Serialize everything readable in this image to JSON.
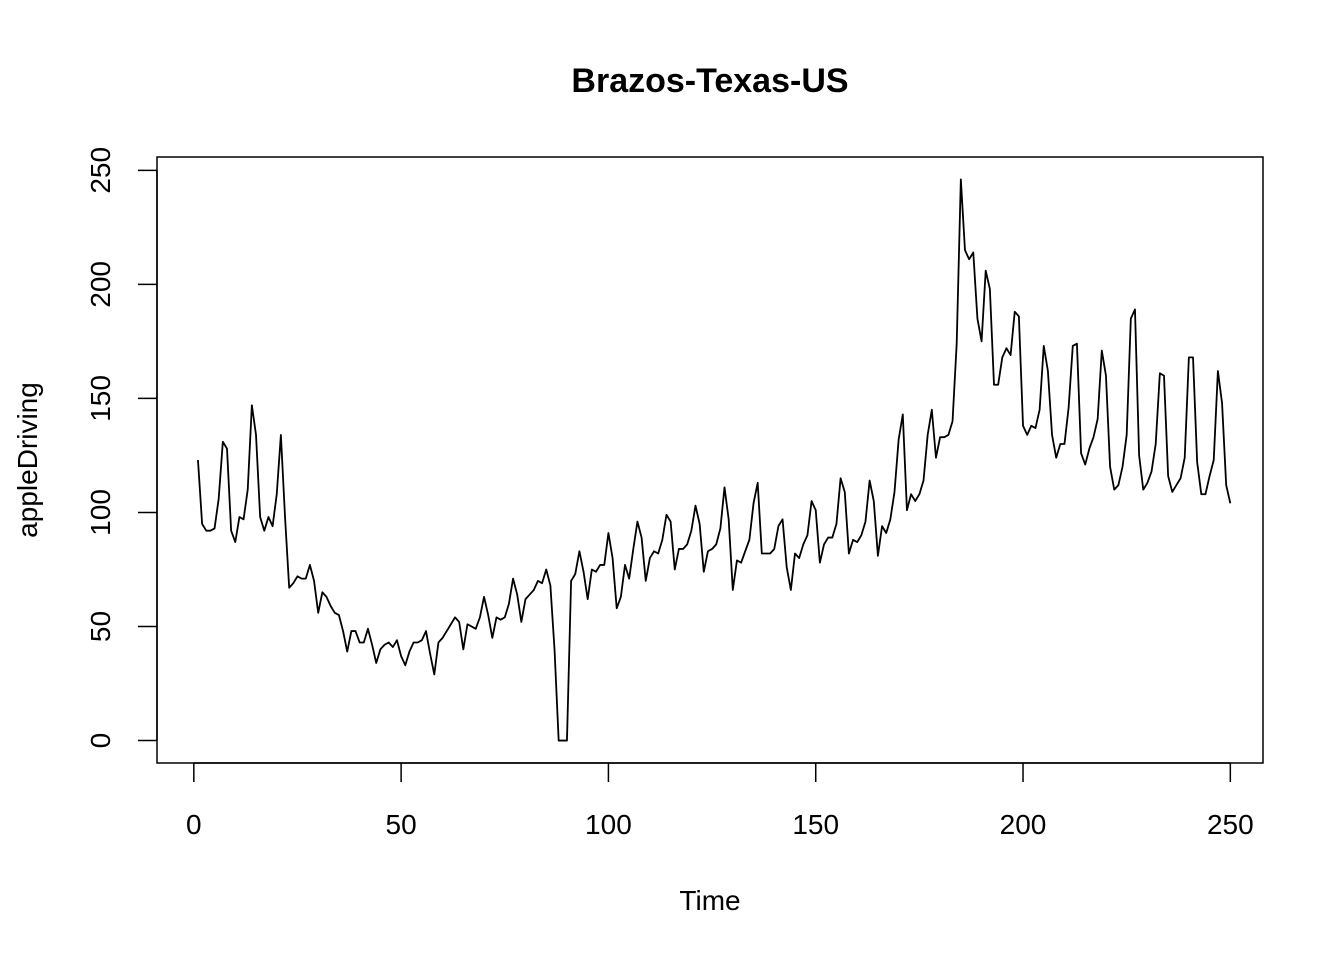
{
  "chart_data": {
    "type": "line",
    "title": "Brazos-Texas-US",
    "xlabel": "Time",
    "ylabel": "appleDriving",
    "xlim": [
      1,
      248
    ],
    "ylim": [
      0,
      246
    ],
    "xticks": [
      0,
      50,
      100,
      150,
      200,
      250
    ],
    "yticks": [
      0,
      50,
      100,
      150,
      200,
      250
    ],
    "grid": false,
    "legend": "none",
    "line_color": "#000000",
    "series": [
      {
        "values": [
          123,
          95,
          92,
          92,
          93,
          106,
          131,
          128,
          92,
          87,
          98,
          97,
          110,
          147,
          134,
          98,
          92,
          98,
          94,
          108,
          134,
          98,
          67,
          69,
          72,
          71,
          71,
          77,
          70,
          56,
          65,
          63,
          59,
          56,
          55,
          48,
          39,
          48,
          48,
          43,
          43,
          49,
          42,
          34,
          40,
          42,
          43,
          41,
          44,
          37,
          33,
          39,
          43,
          43,
          44,
          48,
          38,
          29,
          43,
          45,
          48,
          51,
          54,
          52,
          40,
          51,
          50,
          49,
          54,
          63,
          55,
          45,
          54,
          53,
          54,
          60,
          71,
          64,
          52,
          62,
          64,
          66,
          70,
          69,
          75,
          68,
          40,
          0,
          0,
          0,
          70,
          73,
          83,
          74,
          62,
          75,
          74,
          77,
          77,
          91,
          80,
          58,
          63,
          77,
          71,
          84,
          96,
          89,
          70,
          80,
          83,
          82,
          88,
          99,
          96,
          75,
          84,
          84,
          86,
          92,
          103,
          95,
          74,
          83,
          84,
          86,
          93,
          111,
          97,
          66,
          79,
          78,
          83,
          88,
          104,
          113,
          82,
          82,
          82,
          84,
          94,
          97,
          76,
          66,
          82,
          80,
          86,
          90,
          105,
          101,
          78,
          86,
          89,
          89,
          95,
          115,
          109,
          82,
          88,
          87,
          90,
          96,
          114,
          105,
          81,
          94,
          91,
          97,
          109,
          132,
          143,
          101,
          108,
          105,
          108,
          114,
          134,
          145,
          124,
          133,
          133,
          134,
          140,
          174,
          246,
          215,
          211,
          214,
          185,
          175,
          206,
          198,
          156,
          156,
          168,
          172,
          169,
          188,
          186,
          138,
          134,
          138,
          137,
          145,
          173,
          162,
          134,
          124,
          130,
          130,
          146,
          173,
          174,
          126,
          121,
          128,
          133,
          141,
          171,
          160,
          120,
          110,
          112,
          120,
          134,
          185,
          189,
          125,
          110,
          113,
          118,
          130,
          161,
          160,
          116,
          109,
          112,
          115,
          124,
          168,
          168,
          122,
          108,
          108,
          116,
          123,
          162,
          148,
          112,
          104
        ]
      }
    ]
  }
}
